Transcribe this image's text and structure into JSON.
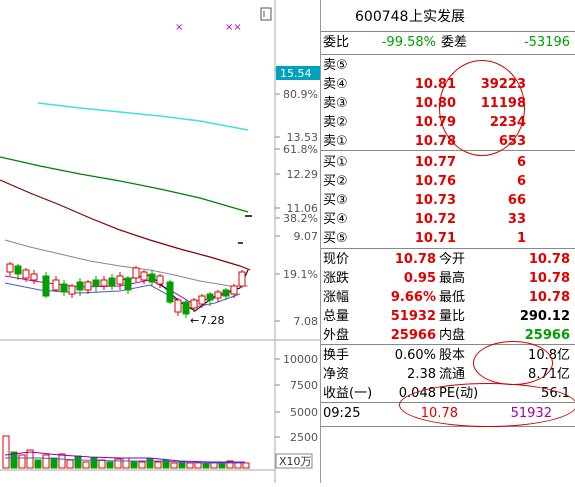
{
  "header": {
    "code": "600748",
    "name": "上实发展"
  },
  "weibi": {
    "label1": "委比",
    "value1": "-99.58%",
    "label2": "委差",
    "value2": "-53196"
  },
  "sell": [
    {
      "label": "卖⑤",
      "price": "",
      "vol": ""
    },
    {
      "label": "卖④",
      "price": "10.81",
      "vol": "39223"
    },
    {
      "label": "卖③",
      "price": "10.80",
      "vol": "11198"
    },
    {
      "label": "卖②",
      "price": "10.79",
      "vol": "2234"
    },
    {
      "label": "卖①",
      "price": "10.78",
      "vol": "653"
    }
  ],
  "buy": [
    {
      "label": "买①",
      "price": "10.77",
      "vol": "6"
    },
    {
      "label": "买②",
      "price": "10.76",
      "vol": "6"
    },
    {
      "label": "买③",
      "price": "10.73",
      "vol": "66"
    },
    {
      "label": "买④",
      "price": "10.72",
      "vol": "33"
    },
    {
      "label": "买⑤",
      "price": "10.71",
      "vol": "1"
    }
  ],
  "stats": [
    {
      "l1": "现价",
      "v1": "10.78",
      "l2": "今开",
      "v2": "10.78"
    },
    {
      "l1": "涨跌",
      "v1": "0.95",
      "l2": "最高",
      "v2": "10.78"
    },
    {
      "l1": "涨幅",
      "v1": "9.66%",
      "l2": "最低",
      "v2": "10.78"
    },
    {
      "l1": "总量",
      "v1": "51932",
      "l2": "量比",
      "v2": "290.12"
    },
    {
      "l1": "外盘",
      "v1": "25966",
      "l2": "内盘",
      "v2": "25966"
    }
  ],
  "stats2": [
    {
      "l1": "换手",
      "v1": "0.60%",
      "l2": "股本",
      "v2": "10.8亿"
    },
    {
      "l1": "净资",
      "v1": "2.38",
      "l2": "流通",
      "v2": "8.71亿"
    },
    {
      "l1": "收益(一)",
      "v1": "0.048",
      "l2": "PE(动)",
      "v2": "56.1"
    }
  ],
  "tick": {
    "time": "09:25",
    "price": "10.78",
    "vol": "51932"
  },
  "axis": {
    "price_labels": [
      "15.54",
      "80.9%",
      "13.53",
      "61.8%",
      "12.29",
      "11.06",
      "38.2%",
      "9.07",
      "19.1%",
      "7.08"
    ],
    "current_price_tag": "15.54",
    "low_marker": "7.28",
    "vol_labels": [
      "10000",
      "7500",
      "5000",
      "2500"
    ],
    "vol_unit": "X10万"
  },
  "colors": {
    "up": "#e00000",
    "down": "#00a000",
    "ma_cyan": "#40e0e0",
    "ma_green": "#008000",
    "ma_dark": "#800000"
  }
}
